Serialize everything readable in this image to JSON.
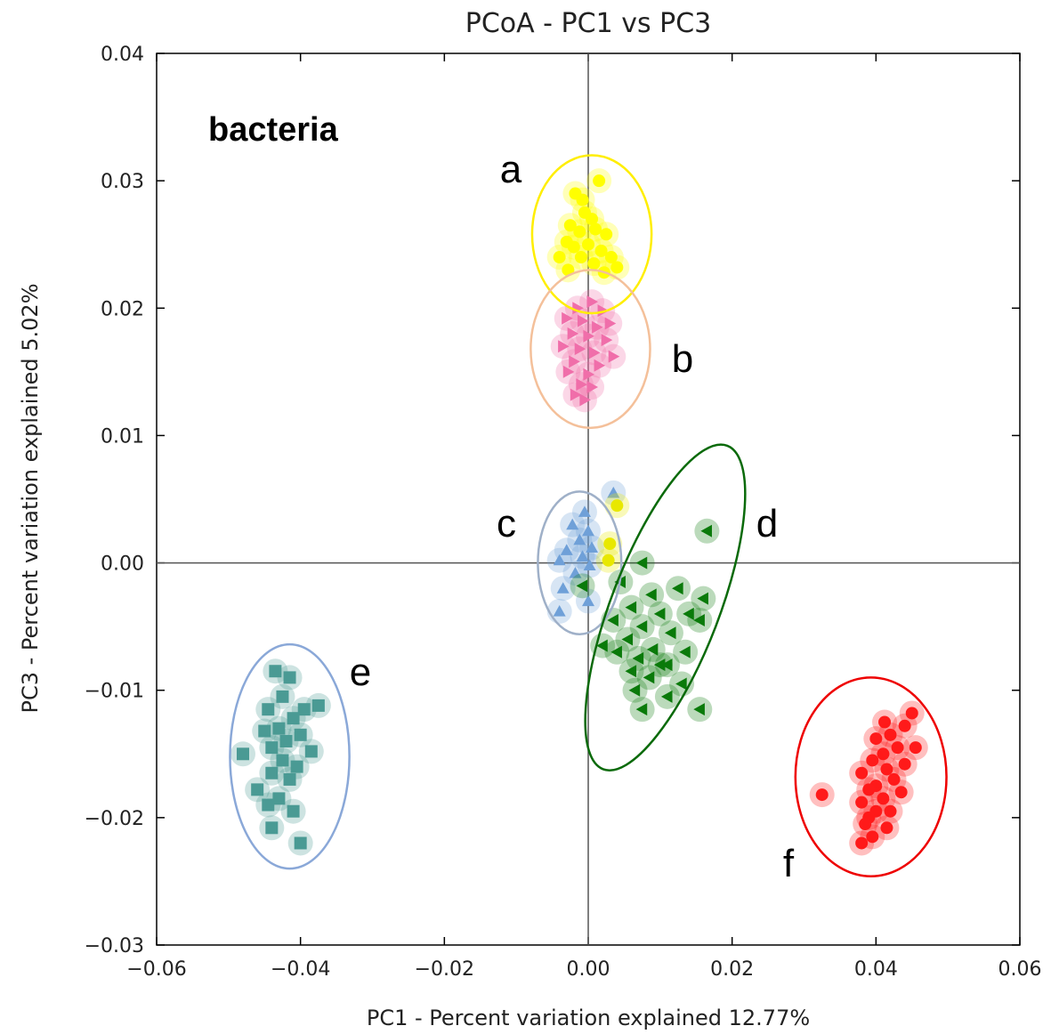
{
  "chart_data": {
    "type": "scatter",
    "title": "PCoA - PC1 vs PC3",
    "xlabel": "PC1 - Percent variation explained 12.77%",
    "ylabel": "PC3 - Percent variation explained 5.02%",
    "annotation": "bacteria",
    "xlim": [
      -0.06,
      0.06
    ],
    "ylim": [
      -0.03,
      0.04
    ],
    "xticks": [
      "−0.06",
      "−0.04",
      "−0.02",
      "0.00",
      "0.02",
      "0.04",
      "0.06"
    ],
    "yticks": [
      "0.04",
      "0.03",
      "0.02",
      "0.01",
      "0.00",
      "−0.01",
      "−0.02",
      "−0.03"
    ],
    "series": [
      {
        "label": "a",
        "color": "#ffff00",
        "ellipse_color": "#ffee00",
        "marker": "circle",
        "ellipse": {
          "cx": 0.0005,
          "cy": 0.0258,
          "rx": 0.0083,
          "ry": 0.0062,
          "angle": 0
        },
        "points": [
          [
            -0.0018,
            0.029
          ],
          [
            -0.0008,
            0.0285
          ],
          [
            0.0015,
            0.03
          ],
          [
            -0.0005,
            0.0275
          ],
          [
            0.0005,
            0.027
          ],
          [
            -0.0025,
            0.0265
          ],
          [
            -0.0012,
            0.026
          ],
          [
            0.001,
            0.0262
          ],
          [
            0.0025,
            0.0258
          ],
          [
            -0.003,
            0.0252
          ],
          [
            -0.002,
            0.0248
          ],
          [
            0.0,
            0.025
          ],
          [
            0.0018,
            0.0245
          ],
          [
            0.0032,
            0.024
          ],
          [
            -0.004,
            0.024
          ],
          [
            -0.001,
            0.024
          ],
          [
            0.0008,
            0.0235
          ],
          [
            0.004,
            0.0232
          ],
          [
            -0.0028,
            0.023
          ],
          [
            0.0022,
            0.0228
          ]
        ]
      },
      {
        "label": "b",
        "color": "#f06eaa",
        "ellipse_color": "#f4c09a",
        "marker": "triangle-right",
        "ellipse": {
          "cx": 0.0003,
          "cy": 0.0168,
          "rx": 0.0083,
          "ry": 0.0062,
          "angle": 0
        },
        "points": [
          [
            -0.0015,
            0.02
          ],
          [
            0.0005,
            0.0205
          ],
          [
            0.002,
            0.0198
          ],
          [
            -0.003,
            0.0192
          ],
          [
            -0.0008,
            0.019
          ],
          [
            0.0012,
            0.0185
          ],
          [
            0.003,
            0.0188
          ],
          [
            -0.0022,
            0.018
          ],
          [
            0.0,
            0.0178
          ],
          [
            0.0025,
            0.0175
          ],
          [
            -0.0035,
            0.017
          ],
          [
            -0.0012,
            0.0168
          ],
          [
            0.0008,
            0.0165
          ],
          [
            0.0035,
            0.0162
          ],
          [
            -0.002,
            0.0158
          ],
          [
            0.0015,
            0.0155
          ],
          [
            -0.0028,
            0.015
          ],
          [
            0.0,
            0.0148
          ],
          [
            -0.001,
            0.014
          ],
          [
            0.0005,
            0.0138
          ],
          [
            -0.0018,
            0.0132
          ],
          [
            -0.0005,
            0.0128
          ]
        ]
      },
      {
        "label": "c",
        "color": "#6fa0d8",
        "ellipse_color": "#9fb0c8",
        "marker": "triangle-up",
        "ellipse": {
          "cx": -0.0012,
          "cy": 0.0,
          "rx": 0.0058,
          "ry": 0.0056,
          "angle": 0
        },
        "points": [
          [
            0.0035,
            0.0055
          ],
          [
            -0.0005,
            0.004
          ],
          [
            -0.0022,
            0.003
          ],
          [
            0.0,
            0.0025
          ],
          [
            -0.0012,
            0.0018
          ],
          [
            0.0005,
            0.0012
          ],
          [
            -0.003,
            0.001
          ],
          [
            -0.0008,
            0.0005
          ],
          [
            -0.004,
            0.0002
          ],
          [
            0.0002,
            -0.0002
          ],
          [
            -0.0018,
            -0.0008
          ],
          [
            -0.0035,
            -0.002
          ],
          [
            0.0,
            -0.003
          ],
          [
            -0.004,
            -0.0038
          ]
        ]
      },
      {
        "label": "c-yellow",
        "color": "#e8e800",
        "ellipse_color": "",
        "marker": "circle",
        "ellipse": null,
        "points": [
          [
            0.004,
            0.0045
          ],
          [
            0.003,
            0.0015
          ],
          [
            0.0028,
            0.0002
          ]
        ]
      },
      {
        "label": "d",
        "color": "#0a7a0a",
        "ellipse_color": "#0a6a0a",
        "marker": "triangle-left",
        "ellipse": {
          "cx": 0.0107,
          "cy": -0.0035,
          "rx": 0.0075,
          "ry": 0.0136,
          "angle": 21
        },
        "points": [
          [
            0.0165,
            0.0025
          ],
          [
            0.0075,
            0.0
          ],
          [
            -0.0008,
            -0.0018
          ],
          [
            0.0045,
            -0.0015
          ],
          [
            0.0088,
            -0.0025
          ],
          [
            0.0125,
            -0.002
          ],
          [
            0.016,
            -0.0028
          ],
          [
            0.006,
            -0.0035
          ],
          [
            0.01,
            -0.004
          ],
          [
            0.014,
            -0.004
          ],
          [
            0.0035,
            -0.0045
          ],
          [
            0.0075,
            -0.005
          ],
          [
            0.0115,
            -0.0055
          ],
          [
            0.0155,
            -0.0045
          ],
          [
            0.0055,
            -0.006
          ],
          [
            0.009,
            -0.0068
          ],
          [
            0.0135,
            -0.007
          ],
          [
            0.002,
            -0.0065
          ],
          [
            0.004,
            -0.007
          ],
          [
            0.007,
            -0.0075
          ],
          [
            0.011,
            -0.008
          ],
          [
            0.006,
            -0.0085
          ],
          [
            0.0085,
            -0.009
          ],
          [
            0.01,
            -0.008
          ],
          [
            0.013,
            -0.0095
          ],
          [
            0.0065,
            -0.01
          ],
          [
            0.0155,
            -0.0115
          ],
          [
            0.0075,
            -0.0115
          ],
          [
            0.011,
            -0.0105
          ]
        ]
      },
      {
        "label": "e",
        "color": "#4a9a94",
        "ellipse_color": "#8aa8d8",
        "marker": "square",
        "ellipse": {
          "cx": -0.0415,
          "cy": -0.0152,
          "rx": 0.0083,
          "ry": 0.0088,
          "angle": 0
        },
        "points": [
          [
            -0.0435,
            -0.0085
          ],
          [
            -0.0415,
            -0.009
          ],
          [
            -0.0425,
            -0.0105
          ],
          [
            -0.0375,
            -0.0112
          ],
          [
            -0.0395,
            -0.0115
          ],
          [
            -0.0445,
            -0.0115
          ],
          [
            -0.041,
            -0.0122
          ],
          [
            -0.043,
            -0.013
          ],
          [
            -0.045,
            -0.0132
          ],
          [
            -0.04,
            -0.0135
          ],
          [
            -0.042,
            -0.014
          ],
          [
            -0.044,
            -0.0145
          ],
          [
            -0.0385,
            -0.0148
          ],
          [
            -0.048,
            -0.015
          ],
          [
            -0.0425,
            -0.0155
          ],
          [
            -0.0405,
            -0.016
          ],
          [
            -0.044,
            -0.0165
          ],
          [
            -0.0415,
            -0.017
          ],
          [
            -0.046,
            -0.0178
          ],
          [
            -0.043,
            -0.0185
          ],
          [
            -0.0445,
            -0.019
          ],
          [
            -0.041,
            -0.0195
          ],
          [
            -0.044,
            -0.0208
          ],
          [
            -0.04,
            -0.022
          ]
        ]
      },
      {
        "label": "f",
        "color": "#ff1a1a",
        "ellipse_color": "#ee0000",
        "marker": "circle",
        "ellipse": {
          "cx": 0.0393,
          "cy": -0.0168,
          "rx": 0.0105,
          "ry": 0.0078,
          "angle": 0
        },
        "points": [
          [
            0.045,
            -0.0118
          ],
          [
            0.0412,
            -0.0125
          ],
          [
            0.044,
            -0.0128
          ],
          [
            0.042,
            -0.0135
          ],
          [
            0.04,
            -0.0138
          ],
          [
            0.043,
            -0.0145
          ],
          [
            0.0455,
            -0.0145
          ],
          [
            0.041,
            -0.015
          ],
          [
            0.0395,
            -0.0155
          ],
          [
            0.044,
            -0.0158
          ],
          [
            0.0415,
            -0.0162
          ],
          [
            0.038,
            -0.0165
          ],
          [
            0.0425,
            -0.017
          ],
          [
            0.04,
            -0.0175
          ],
          [
            0.039,
            -0.0178
          ],
          [
            0.0435,
            -0.018
          ],
          [
            0.041,
            -0.0185
          ],
          [
            0.038,
            -0.0188
          ],
          [
            0.0325,
            -0.0182
          ],
          [
            0.04,
            -0.0195
          ],
          [
            0.042,
            -0.0195
          ],
          [
            0.039,
            -0.02
          ],
          [
            0.0385,
            -0.0205
          ],
          [
            0.0415,
            -0.0208
          ],
          [
            0.0395,
            -0.0215
          ],
          [
            0.038,
            -0.022
          ]
        ]
      }
    ]
  }
}
